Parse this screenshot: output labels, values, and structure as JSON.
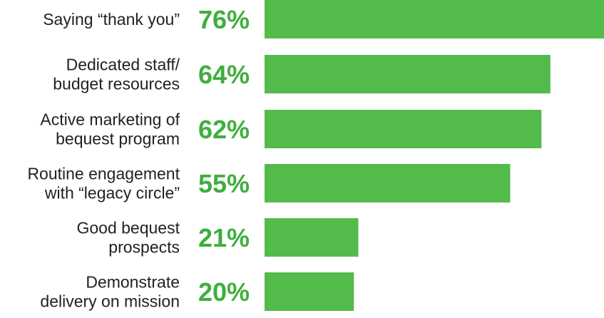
{
  "chart_data": {
    "type": "bar",
    "orientation": "horizontal",
    "categories": [
      [
        "Saying “thank you”"
      ],
      [
        "Dedicated staff/",
        "budget resources"
      ],
      [
        "Active marketing of",
        "bequest program"
      ],
      [
        "Routine engagement",
        "with “legacy circle”"
      ],
      [
        "Good bequest",
        "prospects"
      ],
      [
        "Demonstrate",
        "delivery on mission"
      ]
    ],
    "values": [
      76,
      64,
      62,
      55,
      21,
      20
    ],
    "value_labels": [
      "76%",
      "64%",
      "62%",
      "55%",
      "21%",
      "20%"
    ],
    "xlim": [
      0,
      100
    ],
    "grid": false,
    "legend": false,
    "colors": {
      "bar": "#52bb4a",
      "value_text": "#3fae3d",
      "label_text": "#231f20"
    }
  }
}
